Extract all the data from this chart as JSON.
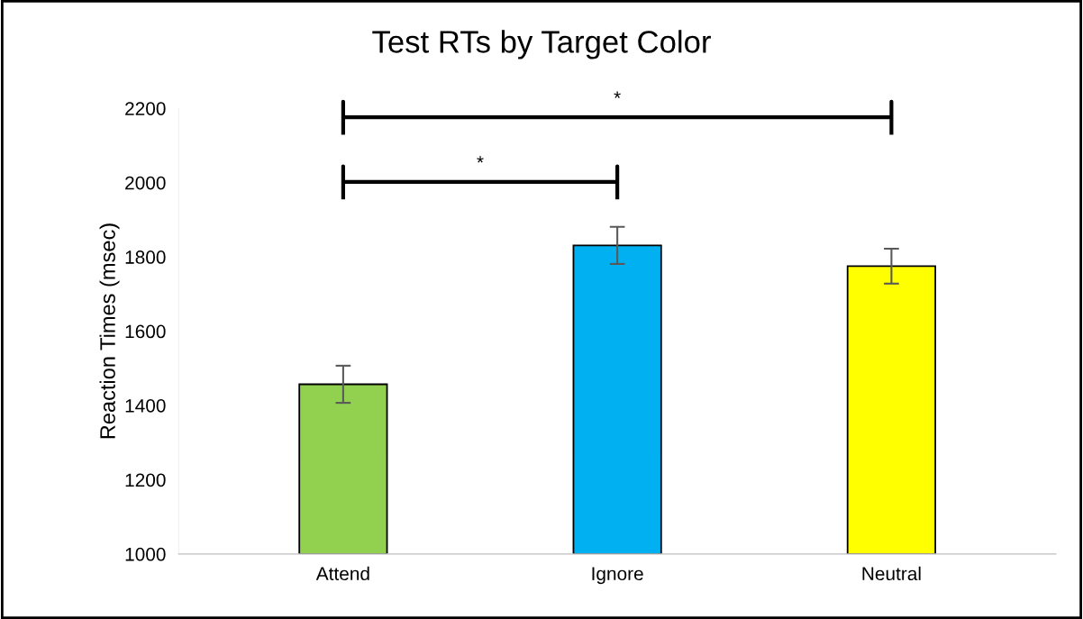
{
  "chart_data": {
    "type": "bar",
    "title": "Test RTs by Target Color",
    "ylabel": "Reaction Times (msec)",
    "categories": [
      "Attend",
      "Ignore",
      "Neutral"
    ],
    "values": [
      1457,
      1831,
      1775
    ],
    "colors": [
      "#92d050",
      "#00b0f0",
      "#ffff00"
    ],
    "errors": [
      50,
      50,
      47
    ],
    "ylim": [
      1000,
      2200
    ],
    "yticks": [
      1000,
      1200,
      1400,
      1600,
      1800,
      2000,
      2200
    ],
    "grid": false,
    "annotations": [
      "*",
      "*"
    ]
  }
}
